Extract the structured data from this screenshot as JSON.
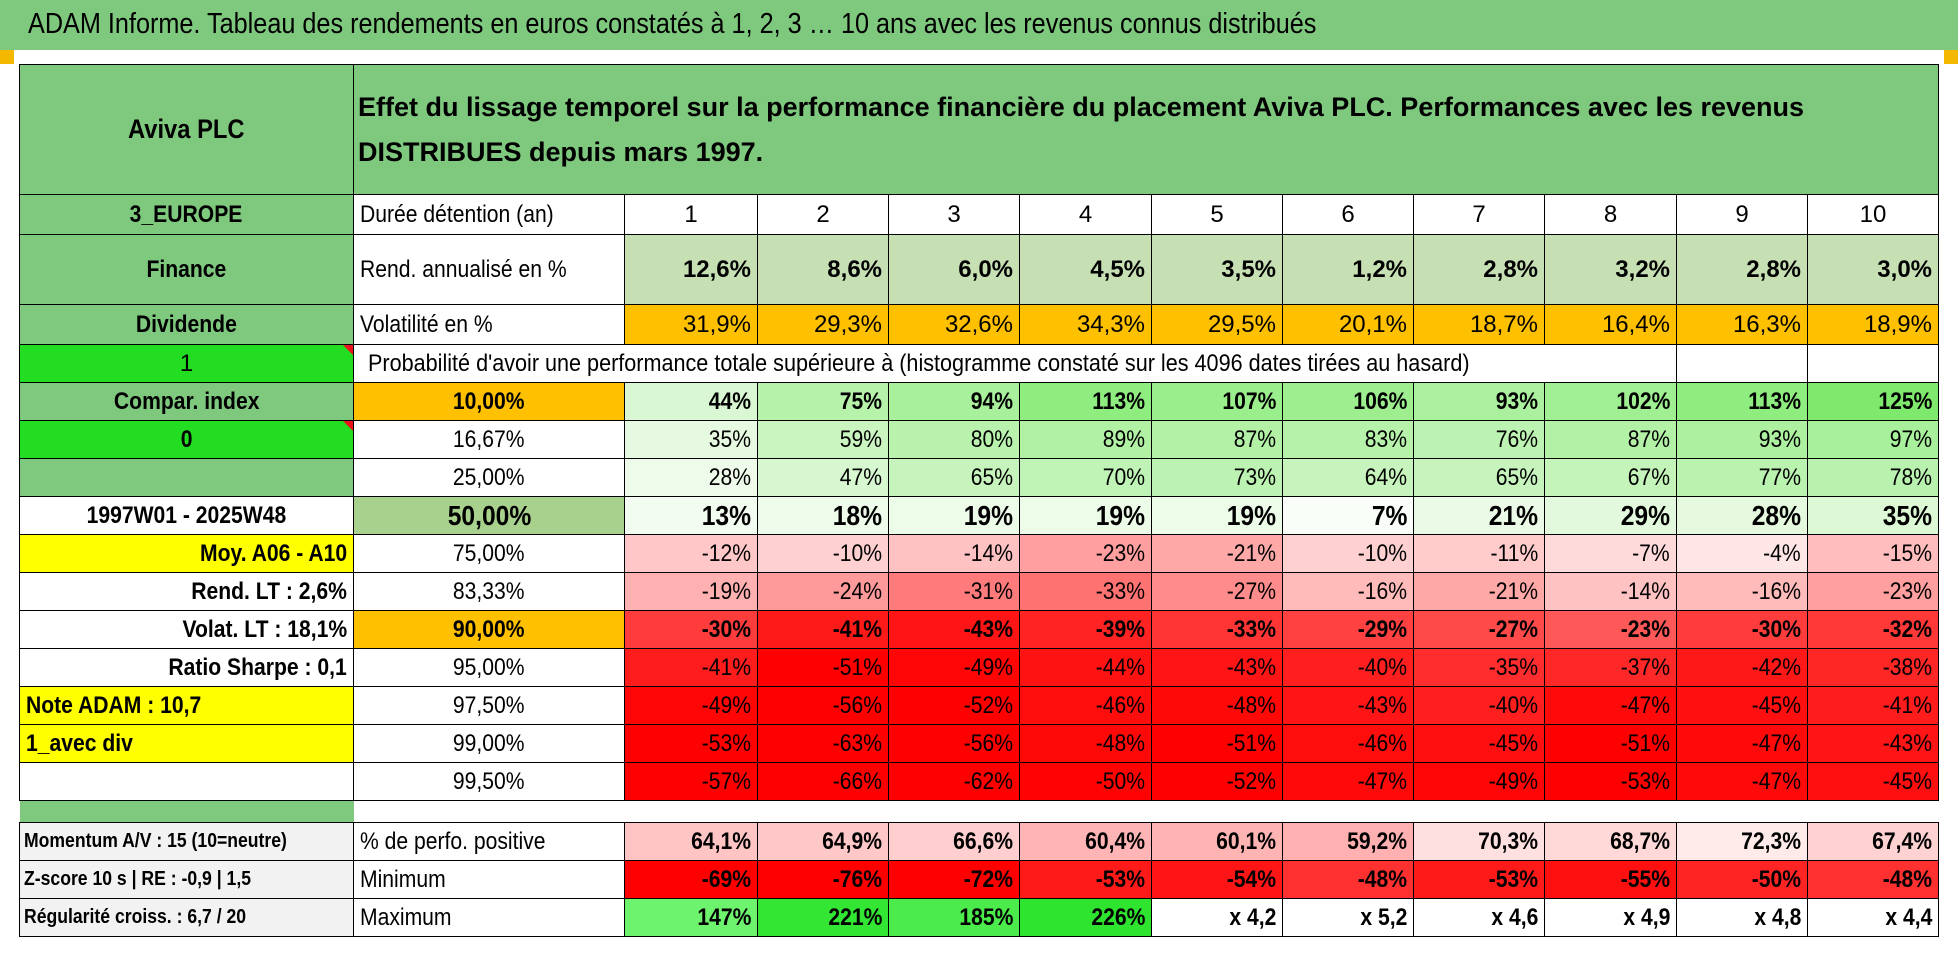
{
  "title": "ADAM Informe. Tableau des rendements en euros constatés à 1, 2, 3 … 10 ans avec les revenus connus distribués",
  "header": {
    "name": "Aviva PLC",
    "description": "Effet du lissage temporel sur la performance financière du placement Aviva PLC. Performances avec les revenus DISTRIBUES depuis mars 1997."
  },
  "left_panel": {
    "region": "3_EUROPE",
    "sector": "Finance",
    "type": "Dividende",
    "index_flag": "1",
    "compar_index": "Compar. index",
    "compar_flag": "0",
    "period": "1997W01 - 2025W48",
    "moy": "Moy. A06 - A10",
    "rend_lt": "Rend. LT :    2,6%",
    "volat_lt": "Volat. LT :    18,1%",
    "sharpe": "Ratio Sharpe :    0,1",
    "note": "Note ADAM : 10,7",
    "mode": "1_avec div"
  },
  "summary_rows": {
    "duration_label": "Durée détention (an)",
    "years": [
      "1",
      "2",
      "3",
      "4",
      "5",
      "6",
      "7",
      "8",
      "9",
      "10"
    ],
    "rend_label": "Rend. annualisé en %",
    "rend": [
      "12,6%",
      "8,6%",
      "6,0%",
      "4,5%",
      "3,5%",
      "1,2%",
      "2,8%",
      "3,2%",
      "2,8%",
      "3,0%"
    ],
    "vol_label": "Volatilité en %",
    "vol": [
      "31,9%",
      "29,3%",
      "32,6%",
      "34,3%",
      "29,5%",
      "20,1%",
      "18,7%",
      "16,4%",
      "16,3%",
      "18,9%"
    ]
  },
  "probability_title": "Probabilité d'avoir une performance totale supérieure à (histogramme constaté sur les 4096 dates tirées au hasard)",
  "probability_rows": [
    {
      "threshold": "10,00%",
      "values": [
        "44%",
        "75%",
        "94%",
        "113%",
        "107%",
        "106%",
        "93%",
        "102%",
        "113%",
        "125%"
      ],
      "colors": [
        "#d9f7d3",
        "#b6f2aa",
        "#a8f09b",
        "#8fec7f",
        "#9aee8c",
        "#9eee90",
        "#abf09e",
        "#a0ef92",
        "#8fec7f",
        "#7fe96e"
      ]
    },
    {
      "threshold": "16,67%",
      "values": [
        "35%",
        "59%",
        "80%",
        "89%",
        "87%",
        "83%",
        "76%",
        "87%",
        "93%",
        "97%"
      ],
      "colors": [
        "#e6fae1",
        "#caf5c0",
        "#b8f2ad",
        "#b0f1a4",
        "#b2f1a6",
        "#b6f2aa",
        "#bdf3b2",
        "#b2f1a6",
        "#acf0a0",
        "#a8f09b"
      ]
    },
    {
      "threshold": "25,00%",
      "values": [
        "28%",
        "47%",
        "65%",
        "70%",
        "73%",
        "64%",
        "65%",
        "67%",
        "77%",
        "78%"
      ],
      "colors": [
        "#eefbea",
        "#d6f7cf",
        "#c6f4bc",
        "#c0f3b6",
        "#bdf3b2",
        "#c7f4bd",
        "#c6f4bc",
        "#c4f4ba",
        "#baf2af",
        "#b9f2ae"
      ]
    },
    {
      "threshold": "50,00%",
      "values": [
        "13%",
        "18%",
        "19%",
        "19%",
        "19%",
        "7%",
        "21%",
        "29%",
        "28%",
        "35%"
      ],
      "colors": [
        "#f3fcf1",
        "#eefbea",
        "#edfbe9",
        "#edfbe9",
        "#edfbe9",
        "#fafef9",
        "#ebfae7",
        "#e3f9dd",
        "#e4f9de",
        "#dcf8d5"
      ]
    },
    {
      "threshold": "75,00%",
      "values": [
        "-12%",
        "-10%",
        "-14%",
        "-23%",
        "-21%",
        "-10%",
        "-11%",
        "-7%",
        "-4%",
        "-15%"
      ],
      "colors": [
        "#ffc7c7",
        "#ffd0d0",
        "#ffc2c2",
        "#ff9f9f",
        "#ffa8a8",
        "#ffd0d0",
        "#ffcbcb",
        "#ffdada",
        "#ffe6e6",
        "#ffbdbd"
      ]
    },
    {
      "threshold": "83,33%",
      "values": [
        "-19%",
        "-24%",
        "-31%",
        "-33%",
        "-27%",
        "-16%",
        "-21%",
        "-14%",
        "-16%",
        "-23%"
      ],
      "colors": [
        "#ffb0b0",
        "#ff9a9a",
        "#ff7b7b",
        "#ff7272",
        "#ff8c8c",
        "#ffbaba",
        "#ffa8a8",
        "#ffc2c2",
        "#ffbaba",
        "#ff9f9f"
      ]
    },
    {
      "threshold": "90,00%",
      "values": [
        "-30%",
        "-41%",
        "-43%",
        "-39%",
        "-33%",
        "-29%",
        "-27%",
        "-23%",
        "-30%",
        "-32%"
      ],
      "colors": [
        "#ff3c3c",
        "#ff1a1a",
        "#ff1515",
        "#ff2323",
        "#ff3535",
        "#ff4141",
        "#ff4a4a",
        "#ff5858",
        "#ff3c3c",
        "#ff3838"
      ]
    },
    {
      "threshold": "95,00%",
      "values": [
        "-41%",
        "-51%",
        "-49%",
        "-44%",
        "-43%",
        "-40%",
        "-35%",
        "-37%",
        "-42%",
        "-38%"
      ],
      "colors": [
        "#ff1c1c",
        "#ff0000",
        "#ff0505",
        "#ff1212",
        "#ff1515",
        "#ff1f1f",
        "#ff2d2d",
        "#ff2828",
        "#ff1818",
        "#ff2626"
      ]
    },
    {
      "threshold": "97,50%",
      "values": [
        "-49%",
        "-56%",
        "-52%",
        "-46%",
        "-48%",
        "-43%",
        "-40%",
        "-47%",
        "-45%",
        "-41%"
      ],
      "colors": [
        "#ff0505",
        "#ff0000",
        "#ff0000",
        "#ff0d0d",
        "#ff0808",
        "#ff1515",
        "#ff1f1f",
        "#ff0a0a",
        "#ff0f0f",
        "#ff1c1c"
      ]
    },
    {
      "threshold": "99,00%",
      "values": [
        "-53%",
        "-63%",
        "-56%",
        "-48%",
        "-51%",
        "-46%",
        "-45%",
        "-51%",
        "-47%",
        "-43%"
      ],
      "colors": [
        "#ff0000",
        "#ff0000",
        "#ff0000",
        "#ff0808",
        "#ff0000",
        "#ff0d0d",
        "#ff0f0f",
        "#ff0000",
        "#ff0a0a",
        "#ff1515"
      ]
    },
    {
      "threshold": "99,50%",
      "values": [
        "-57%",
        "-66%",
        "-62%",
        "-50%",
        "-52%",
        "-47%",
        "-49%",
        "-53%",
        "-47%",
        "-45%"
      ],
      "colors": [
        "#ff0000",
        "#ff0000",
        "#ff0000",
        "#ff0303",
        "#ff0000",
        "#ff0a0a",
        "#ff0505",
        "#ff0000",
        "#ff0a0a",
        "#ff0f0f"
      ]
    }
  ],
  "bottom_rows": [
    {
      "left": "Momentum A/V : 15 (10=neutre)",
      "label": "% de perfo. positive",
      "values": [
        "64,1%",
        "64,9%",
        "66,6%",
        "60,4%",
        "60,1%",
        "59,2%",
        "70,3%",
        "68,7%",
        "72,3%",
        "67,4%"
      ],
      "colors": [
        "#ffc5c5",
        "#ffc8c8",
        "#ffcfcf",
        "#ffb5b5",
        "#ffb4b4",
        "#ffb0b0",
        "#ffe0e0",
        "#ffd8d8",
        "#ffeaea",
        "#ffd2d2"
      ]
    },
    {
      "left": "Z-score 10 s | RE : -0,9 | 1,5",
      "label": "Minimum",
      "values": [
        "-69%",
        "-76%",
        "-72%",
        "-53%",
        "-54%",
        "-48%",
        "-53%",
        "-55%",
        "-50%",
        "-48%"
      ],
      "colors": [
        "#ff0000",
        "#ff0000",
        "#ff0000",
        "#ff1a1a",
        "#ff1515",
        "#ff3030",
        "#ff1a1a",
        "#ff1010",
        "#ff2424",
        "#ff3030"
      ]
    },
    {
      "left": "Régularité croiss. : 6,7 / 20",
      "label": "Maximum",
      "values": [
        "147%",
        "221%",
        "185%",
        "226%",
        "x 4,2",
        "x 5,2",
        "x 4,6",
        "x 4,9",
        "x 4,8",
        "x 4,4"
      ],
      "colors": [
        "#6ef36e",
        "#33e633",
        "#4aeb4a",
        "#2ee42e",
        "#ffffff",
        "#ffffff",
        "#ffffff",
        "#ffffff",
        "#ffffff",
        "#ffffff"
      ]
    }
  ]
}
